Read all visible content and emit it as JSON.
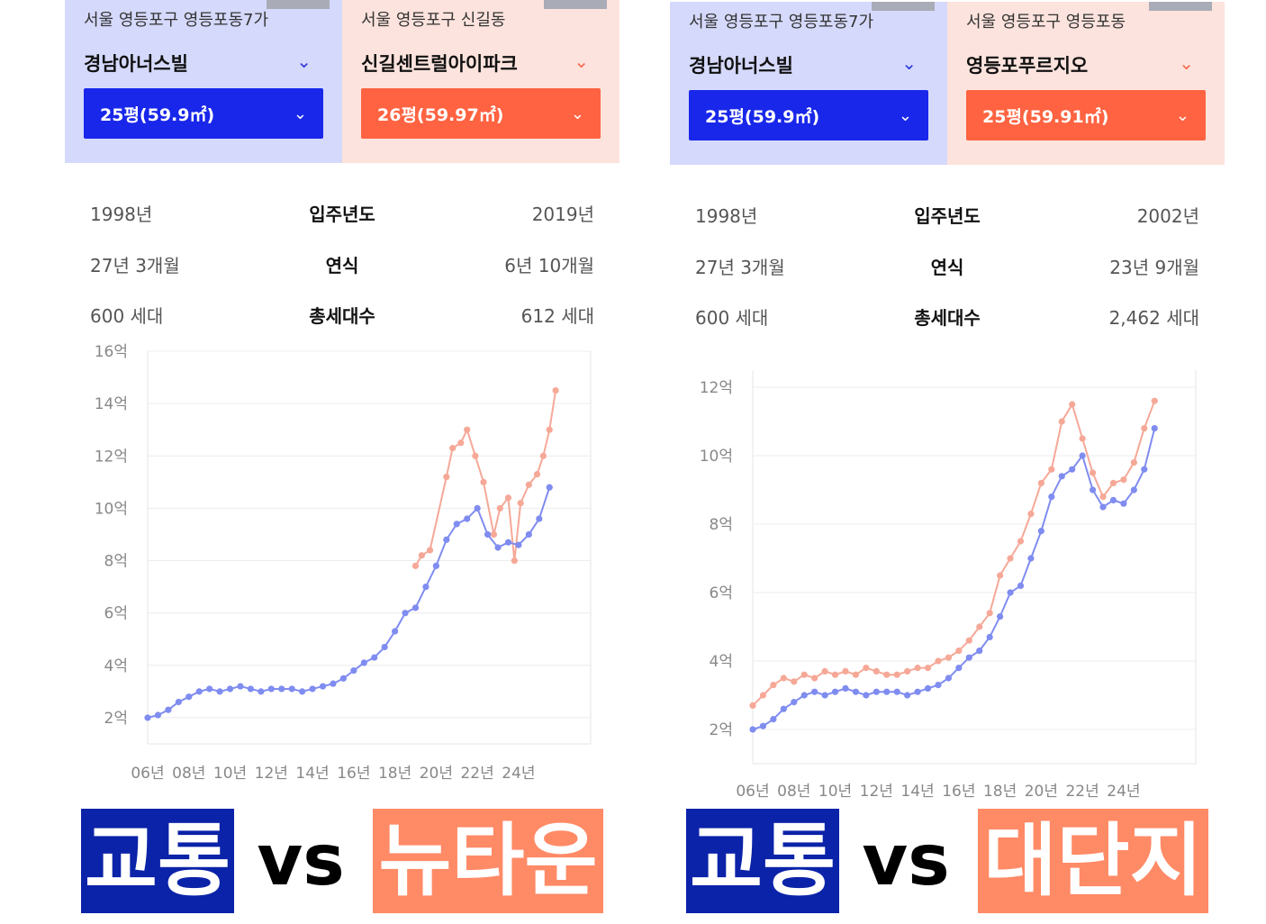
{
  "panels": [
    {
      "left": {
        "region": "서울 영등포구 영등포동7가",
        "apt": "경남아너스빌",
        "size": "25평(59.9㎡)",
        "built": "1998년",
        "age": "27년 3개월",
        "households": "600 세대"
      },
      "right": {
        "region": "서울 영등포구 신길동",
        "apt": "신길센트럴아이파크",
        "size": "26평(59.97㎡)",
        "built": "2019년",
        "age": "6년 10개월",
        "households": "612 세대"
      },
      "labels": {
        "built": "입주년도",
        "age": "연식",
        "households": "총세대수"
      },
      "banner": {
        "left": "교통",
        "vs": "vs",
        "right": "뉴타운"
      }
    },
    {
      "left": {
        "region": "서울 영등포구 영등포동7가",
        "apt": "경남아너스빌",
        "size": "25평(59.9㎡)",
        "built": "1998년",
        "age": "27년 3개월",
        "households": "600 세대"
      },
      "right": {
        "region": "서울 영등포구 영등포동",
        "apt": "영등포푸르지오",
        "size": "25평(59.91㎡)",
        "built": "2002년",
        "age": "23년 9개월",
        "households": "2,462 세대"
      },
      "labels": {
        "built": "입주년도",
        "age": "연식",
        "households": "총세대수"
      },
      "banner": {
        "left": "교통",
        "vs": "vs",
        "right": "대단지"
      }
    }
  ],
  "colors": {
    "blue": "#1927ea",
    "orange": "#ff6341",
    "blueLine": "#7f8cf0",
    "orangeLine": "#f6a897"
  },
  "chart_data": [
    {
      "type": "line",
      "ylim": [
        1,
        16
      ],
      "y_ticks": [
        2,
        4,
        6,
        8,
        10,
        12,
        14,
        16
      ],
      "y_tick_labels": [
        "2억",
        "4억",
        "6억",
        "8억",
        "10억",
        "12억",
        "14억",
        "16억"
      ],
      "xlim": [
        2006,
        2027.5
      ],
      "x_ticks": [
        2006,
        2008,
        2010,
        2012,
        2014,
        2016,
        2018,
        2020,
        2022,
        2024
      ],
      "x_tick_labels": [
        "06년",
        "08년",
        "10년",
        "12년",
        "14년",
        "16년",
        "18년",
        "20년",
        "22년",
        "24년"
      ],
      "series": [
        {
          "name": "경남아너스빌",
          "color": "#7f8cf0",
          "points": [
            [
              2006.0,
              2.0
            ],
            [
              2006.5,
              2.1
            ],
            [
              2007.0,
              2.3
            ],
            [
              2007.5,
              2.6
            ],
            [
              2008.0,
              2.8
            ],
            [
              2008.5,
              3.0
            ],
            [
              2009.0,
              3.1
            ],
            [
              2009.5,
              3.0
            ],
            [
              2010.0,
              3.1
            ],
            [
              2010.5,
              3.2
            ],
            [
              2011.0,
              3.1
            ],
            [
              2011.5,
              3.0
            ],
            [
              2012.0,
              3.1
            ],
            [
              2012.5,
              3.1
            ],
            [
              2013.0,
              3.1
            ],
            [
              2013.5,
              3.0
            ],
            [
              2014.0,
              3.1
            ],
            [
              2014.5,
              3.2
            ],
            [
              2015.0,
              3.3
            ],
            [
              2015.5,
              3.5
            ],
            [
              2016.0,
              3.8
            ],
            [
              2016.5,
              4.1
            ],
            [
              2017.0,
              4.3
            ],
            [
              2017.5,
              4.7
            ],
            [
              2018.0,
              5.3
            ],
            [
              2018.5,
              6.0
            ],
            [
              2019.0,
              6.2
            ],
            [
              2019.5,
              7.0
            ],
            [
              2020.0,
              7.8
            ],
            [
              2020.5,
              8.8
            ],
            [
              2021.0,
              9.4
            ],
            [
              2021.5,
              9.6
            ],
            [
              2022.0,
              10.0
            ],
            [
              2022.5,
              9.0
            ],
            [
              2023.0,
              8.5
            ],
            [
              2023.5,
              8.7
            ],
            [
              2024.0,
              8.6
            ],
            [
              2024.5,
              9.0
            ],
            [
              2025.0,
              9.6
            ],
            [
              2025.5,
              10.8
            ]
          ]
        },
        {
          "name": "신길센트럴아이파크",
          "color": "#f6a897",
          "points": [
            [
              2019.0,
              7.8
            ],
            [
              2019.3,
              8.2
            ],
            [
              2019.7,
              8.4
            ],
            [
              2020.5,
              11.2
            ],
            [
              2020.8,
              12.3
            ],
            [
              2021.2,
              12.5
            ],
            [
              2021.5,
              13.0
            ],
            [
              2021.9,
              12.0
            ],
            [
              2022.3,
              11.0
            ],
            [
              2022.8,
              9.0
            ],
            [
              2023.1,
              10.0
            ],
            [
              2023.5,
              10.4
            ],
            [
              2023.8,
              8.0
            ],
            [
              2024.1,
              10.2
            ],
            [
              2024.5,
              10.9
            ],
            [
              2024.9,
              11.3
            ],
            [
              2025.2,
              12.0
            ],
            [
              2025.5,
              13.0
            ],
            [
              2025.8,
              14.5
            ]
          ]
        }
      ]
    },
    {
      "type": "line",
      "ylim": [
        1,
        12.5
      ],
      "y_ticks": [
        2,
        4,
        6,
        8,
        10,
        12
      ],
      "y_tick_labels": [
        "2억",
        "4억",
        "6억",
        "8억",
        "10억",
        "12억"
      ],
      "xlim": [
        2006,
        2027.5
      ],
      "x_ticks": [
        2006,
        2008,
        2010,
        2012,
        2014,
        2016,
        2018,
        2020,
        2022,
        2024
      ],
      "x_tick_labels": [
        "06년",
        "08년",
        "10년",
        "12년",
        "14년",
        "16년",
        "18년",
        "20년",
        "22년",
        "24년"
      ],
      "series": [
        {
          "name": "경남아너스빌",
          "color": "#7f8cf0",
          "points": [
            [
              2006.0,
              2.0
            ],
            [
              2006.5,
              2.1
            ],
            [
              2007.0,
              2.3
            ],
            [
              2007.5,
              2.6
            ],
            [
              2008.0,
              2.8
            ],
            [
              2008.5,
              3.0
            ],
            [
              2009.0,
              3.1
            ],
            [
              2009.5,
              3.0
            ],
            [
              2010.0,
              3.1
            ],
            [
              2010.5,
              3.2
            ],
            [
              2011.0,
              3.1
            ],
            [
              2011.5,
              3.0
            ],
            [
              2012.0,
              3.1
            ],
            [
              2012.5,
              3.1
            ],
            [
              2013.0,
              3.1
            ],
            [
              2013.5,
              3.0
            ],
            [
              2014.0,
              3.1
            ],
            [
              2014.5,
              3.2
            ],
            [
              2015.0,
              3.3
            ],
            [
              2015.5,
              3.5
            ],
            [
              2016.0,
              3.8
            ],
            [
              2016.5,
              4.1
            ],
            [
              2017.0,
              4.3
            ],
            [
              2017.5,
              4.7
            ],
            [
              2018.0,
              5.3
            ],
            [
              2018.5,
              6.0
            ],
            [
              2019.0,
              6.2
            ],
            [
              2019.5,
              7.0
            ],
            [
              2020.0,
              7.8
            ],
            [
              2020.5,
              8.8
            ],
            [
              2021.0,
              9.4
            ],
            [
              2021.5,
              9.6
            ],
            [
              2022.0,
              10.0
            ],
            [
              2022.5,
              9.0
            ],
            [
              2023.0,
              8.5
            ],
            [
              2023.5,
              8.7
            ],
            [
              2024.0,
              8.6
            ],
            [
              2024.5,
              9.0
            ],
            [
              2025.0,
              9.6
            ],
            [
              2025.5,
              10.8
            ]
          ]
        },
        {
          "name": "영등포푸르지오",
          "color": "#f6a897",
          "points": [
            [
              2006.0,
              2.7
            ],
            [
              2006.5,
              3.0
            ],
            [
              2007.0,
              3.3
            ],
            [
              2007.5,
              3.5
            ],
            [
              2008.0,
              3.4
            ],
            [
              2008.5,
              3.6
            ],
            [
              2009.0,
              3.5
            ],
            [
              2009.5,
              3.7
            ],
            [
              2010.0,
              3.6
            ],
            [
              2010.5,
              3.7
            ],
            [
              2011.0,
              3.6
            ],
            [
              2011.5,
              3.8
            ],
            [
              2012.0,
              3.7
            ],
            [
              2012.5,
              3.6
            ],
            [
              2013.0,
              3.6
            ],
            [
              2013.5,
              3.7
            ],
            [
              2014.0,
              3.8
            ],
            [
              2014.5,
              3.8
            ],
            [
              2015.0,
              4.0
            ],
            [
              2015.5,
              4.1
            ],
            [
              2016.0,
              4.3
            ],
            [
              2016.5,
              4.6
            ],
            [
              2017.0,
              5.0
            ],
            [
              2017.5,
              5.4
            ],
            [
              2018.0,
              6.5
            ],
            [
              2018.5,
              7.0
            ],
            [
              2019.0,
              7.5
            ],
            [
              2019.5,
              8.3
            ],
            [
              2020.0,
              9.2
            ],
            [
              2020.5,
              9.6
            ],
            [
              2021.0,
              11.0
            ],
            [
              2021.5,
              11.5
            ],
            [
              2022.0,
              10.5
            ],
            [
              2022.5,
              9.5
            ],
            [
              2023.0,
              8.8
            ],
            [
              2023.5,
              9.2
            ],
            [
              2024.0,
              9.3
            ],
            [
              2024.5,
              9.8
            ],
            [
              2025.0,
              10.8
            ],
            [
              2025.5,
              11.6
            ]
          ]
        }
      ]
    }
  ]
}
